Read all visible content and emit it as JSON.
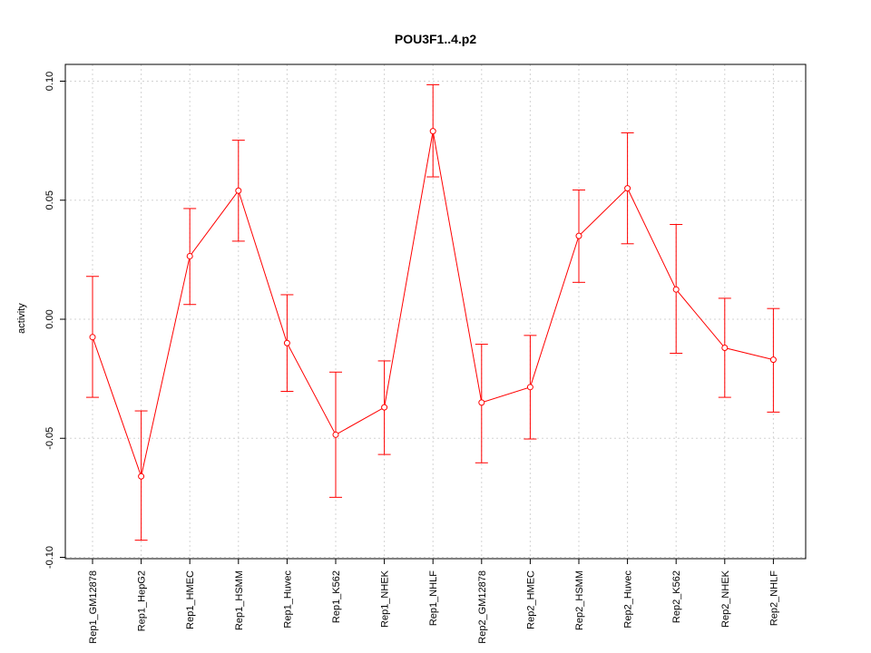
{
  "chart_data": {
    "type": "line",
    "title": "POU3F1..4.p2",
    "xlabel": "",
    "ylabel": "activity",
    "ylim": [
      -0.1,
      0.1
    ],
    "yticks": [
      -0.1,
      -0.05,
      0.0,
      0.05,
      0.1
    ],
    "ytick_labels": [
      "-0.10",
      "-0.05",
      "0.00",
      "0.05",
      "0.10"
    ],
    "grid": true,
    "categories": [
      "Rep1_GM12878",
      "Rep1_HepG2",
      "Rep1_HMEC",
      "Rep1_HSMM",
      "Rep1_Huvec",
      "Rep1_K562",
      "Rep1_NHEK",
      "Rep1_NHLF",
      "Rep2_GM12878",
      "Rep2_HMEC",
      "Rep2_HSMM",
      "Rep2_Huvec",
      "Rep2_K562",
      "Rep2_NHEK",
      "Rep2_NHLF"
    ],
    "series": [
      {
        "color": "#ff0000",
        "values": [
          -0.0075,
          -0.066,
          0.0265,
          0.054,
          -0.01,
          -0.0485,
          -0.037,
          0.079,
          -0.035,
          -0.0285,
          0.035,
          0.055,
          0.0125,
          -0.012,
          -0.017
        ],
        "upper": [
          0.018,
          -0.0385,
          0.0465,
          0.0752,
          0.0103,
          -0.0222,
          -0.0175,
          0.0985,
          -0.0105,
          -0.0068,
          0.0543,
          0.0783,
          0.0398,
          0.0088,
          0.0045
        ],
        "lower": [
          -0.0328,
          -0.0928,
          0.0062,
          0.0328,
          -0.0303,
          -0.0748,
          -0.0568,
          0.0598,
          -0.0603,
          -0.0503,
          0.0155,
          0.0317,
          -0.0143,
          -0.0328,
          -0.039
        ]
      }
    ]
  }
}
